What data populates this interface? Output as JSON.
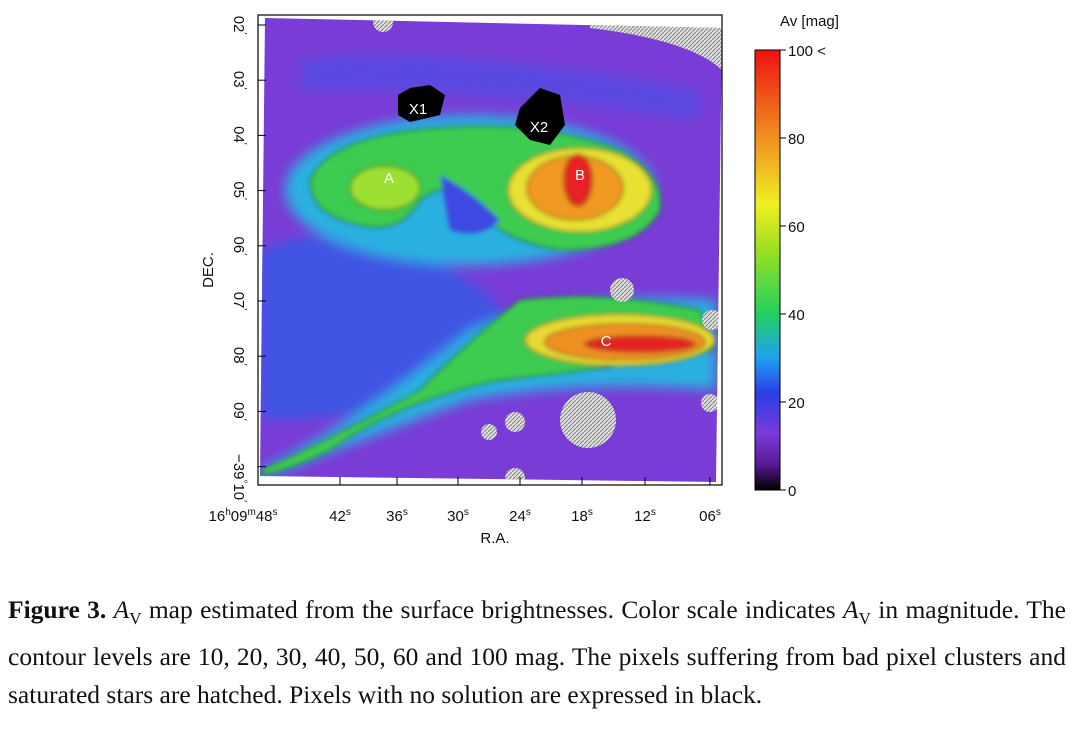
{
  "figure": {
    "axis_labels": {
      "y": "DEC.",
      "x": "R.A."
    },
    "x_ticks": [
      [
        "16",
        "h",
        "09",
        "m",
        "48",
        "s"
      ],
      [
        "42",
        "s"
      ],
      [
        "36",
        "s"
      ],
      [
        "30",
        "s"
      ],
      [
        "24",
        "s"
      ],
      [
        "18",
        "s"
      ],
      [
        "12",
        "s"
      ],
      [
        "06",
        "s"
      ]
    ],
    "y_ticks": [
      [
        "02",
        "′"
      ],
      [
        "03",
        "′"
      ],
      [
        "04",
        "′"
      ],
      [
        "05",
        "′"
      ],
      [
        "06",
        "′"
      ],
      [
        "07",
        "′"
      ],
      [
        "08",
        "′"
      ],
      [
        "09",
        "′"
      ],
      [
        "−39",
        "°",
        "10",
        "′"
      ]
    ],
    "colorbar": {
      "title": "Av [mag]",
      "ticks": [
        "100 <",
        "80",
        "60",
        "40",
        "20",
        "0"
      ]
    },
    "regions": [
      "X1",
      "X2",
      "A",
      "B",
      "C"
    ]
  },
  "caption": {
    "label": "Figure 3.",
    "symbol": "A",
    "symbol_sub": "V",
    "text1": " map estimated from the surface brightnesses. Color scale indicates ",
    "text2": " in magnitude. The contour levels are 10, 20, 30, 40, 50, 60 and 100 mag. The pixels suffering from bad pixel clusters and saturated stars are hatched. Pixels with no solution are expressed in black."
  }
}
